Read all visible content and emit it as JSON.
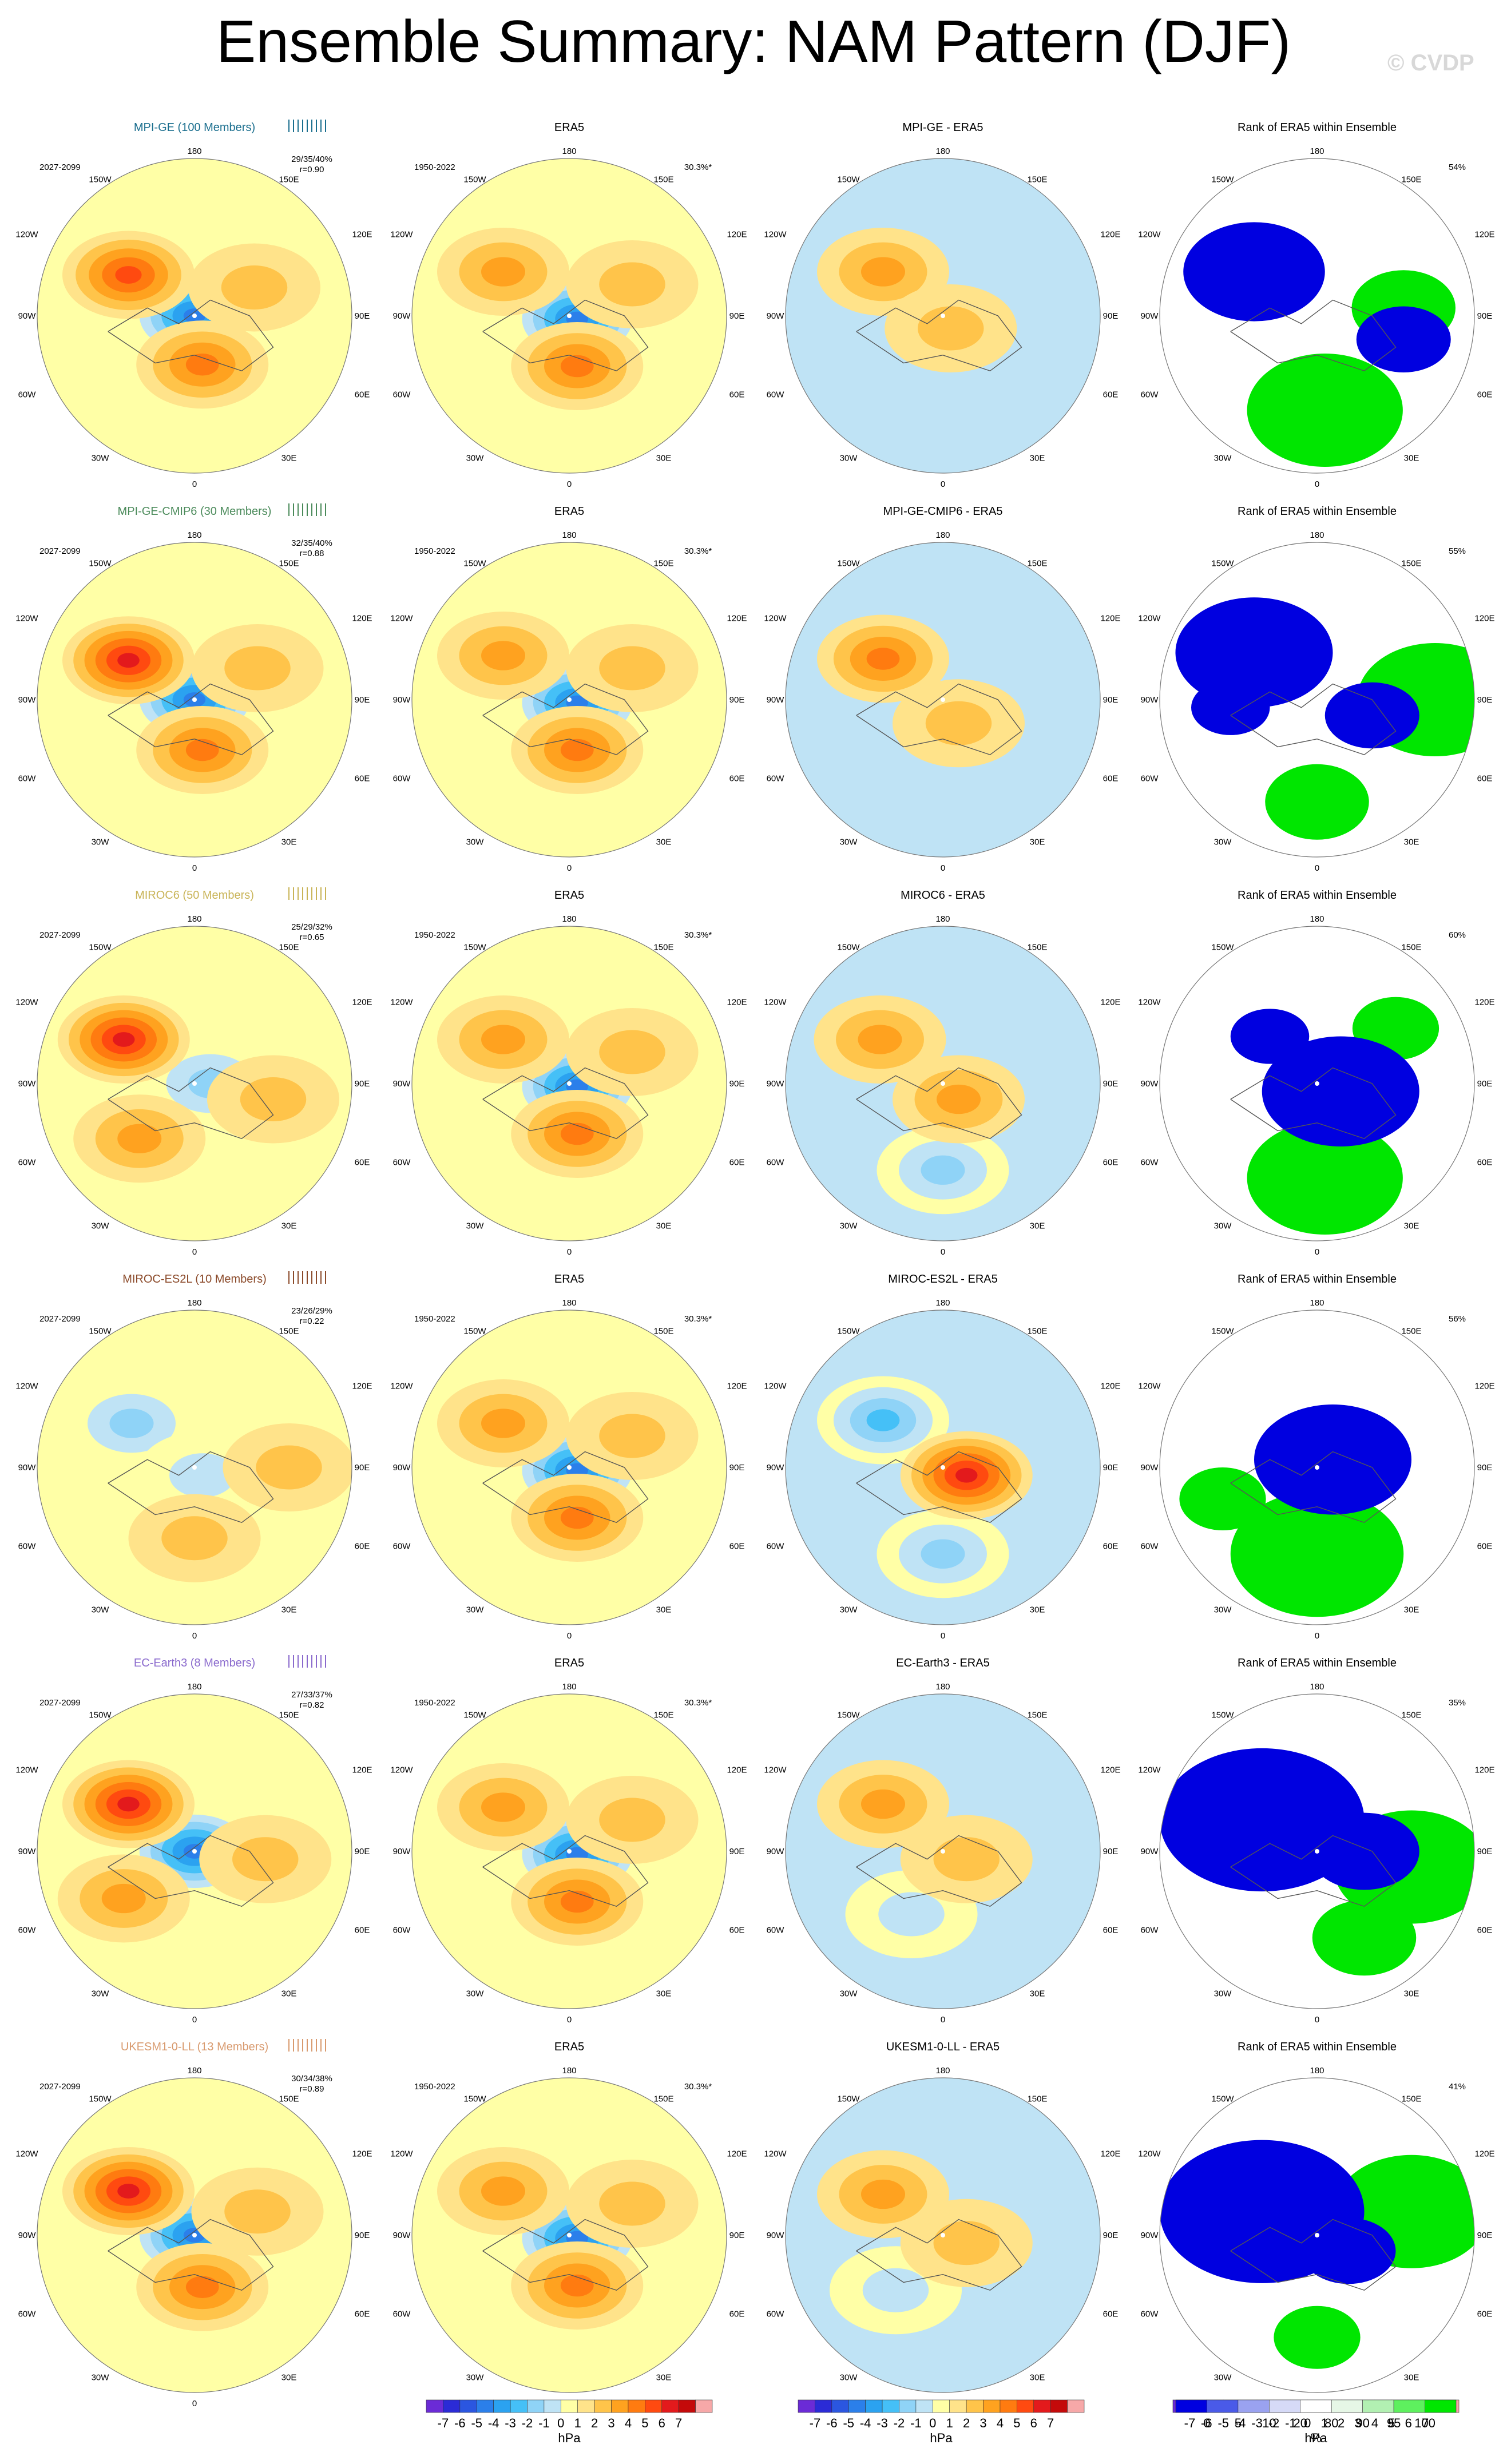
{
  "title": "Ensemble Summary: NAM Pattern (DJF)",
  "watermark": "© CVDP",
  "period_model": "2027-2099",
  "period_obs": "1950-2022",
  "obs_name": "ERA5",
  "obs_variance": "30.3%*",
  "rank_title": "Rank of ERA5 within Ensemble",
  "lon_labels": {
    "top": "180",
    "bottom": "0",
    "left_top": "150W",
    "right_top": "150E",
    "left_upper": "120W",
    "right_upper": "120E",
    "left_mid": "90W",
    "right_mid": "90E",
    "left_lower": "60W",
    "right_lower": "60E",
    "left_bottom": "30W",
    "right_bottom": "30E"
  },
  "models": [
    {
      "title": "MPI-GE (100 Members)",
      "diff_title": "MPI-GE - ERA5",
      "color": "#1a6e8e",
      "stats": "29/35/40%",
      "corr": "r=0.90",
      "rank_pct": "54%",
      "mean_pos": [
        [
          -0.42,
          -0.26,
          4.6
        ],
        [
          0.05,
          0.31,
          3.2
        ],
        [
          0.38,
          -0.18,
          1.5
        ]
      ],
      "mean_neg": [
        [
          0.0,
          0.0,
          -5.2
        ]
      ],
      "diff_pos": [
        [
          -0.38,
          -0.28,
          2.2
        ],
        [
          0.05,
          0.08,
          1.2
        ]
      ],
      "diff_neg": [],
      "rank_low": [
        [
          -0.4,
          -0.28,
          0.9
        ],
        [
          0.55,
          0.15,
          0.6
        ]
      ],
      "rank_high": [
        [
          0.05,
          0.6,
          0.9
        ],
        [
          0.55,
          -0.05,
          0.6
        ]
      ]
    },
    {
      "title": "MPI-GE-CMIP6 (30 Members)",
      "diff_title": "MPI-GE-CMIP6 - ERA5",
      "color": "#4a8a5a",
      "stats": "32/35/40%",
      "corr": "r=0.88",
      "rank_pct": "55%",
      "mean_pos": [
        [
          -0.42,
          -0.25,
          5.8
        ],
        [
          0.05,
          0.32,
          3.4
        ],
        [
          0.4,
          -0.2,
          1.6
        ]
      ],
      "mean_neg": [
        [
          0.0,
          0.0,
          -5.0
        ]
      ],
      "diff_pos": [
        [
          -0.38,
          -0.26,
          3.2
        ],
        [
          0.1,
          0.15,
          1.3
        ]
      ],
      "diff_neg": [],
      "rank_low": [
        [
          -0.4,
          -0.3,
          1.0
        ],
        [
          0.35,
          0.1,
          0.6
        ],
        [
          -0.55,
          0.05,
          0.5
        ]
      ],
      "rank_high": [
        [
          0.75,
          0.0,
          0.9
        ],
        [
          0.0,
          0.65,
          0.6
        ]
      ]
    },
    {
      "title": "MIROC6 (50 Members)",
      "diff_title": "MIROC6 - ERA5",
      "color": "#c9b458",
      "stats": "25/29/32%",
      "corr": "r=0.65",
      "rank_pct": "60%",
      "mean_pos": [
        [
          -0.45,
          -0.28,
          5.2
        ],
        [
          -0.35,
          0.35,
          2.2
        ],
        [
          0.5,
          0.1,
          1.2
        ]
      ],
      "mean_neg": [
        [
          0.1,
          0.0,
          -2.8
        ]
      ],
      "diff_pos": [
        [
          -0.4,
          -0.28,
          2.6
        ],
        [
          0.1,
          0.1,
          2.8
        ]
      ],
      "diff_neg": [
        [
          0.0,
          0.55,
          -2.4
        ]
      ],
      "rank_low": [
        [
          0.15,
          0.05,
          1.0
        ],
        [
          -0.3,
          -0.3,
          0.5
        ]
      ],
      "rank_high": [
        [
          0.05,
          0.6,
          0.9
        ],
        [
          0.5,
          -0.35,
          0.5
        ]
      ]
    },
    {
      "title": "MIROC-ES2L (10 Members)",
      "diff_title": "MIROC-ES2L - ERA5",
      "color": "#8b4a2a",
      "stats": "23/26/29%",
      "corr": "r=0.22",
      "rank_pct": "56%",
      "mean_pos": [
        [
          0.0,
          0.45,
          1.5
        ],
        [
          0.6,
          0.0,
          1.2
        ]
      ],
      "mean_neg": [
        [
          -0.4,
          -0.28,
          -2.4
        ],
        [
          0.05,
          0.05,
          -1.6
        ]
      ],
      "diff_pos": [
        [
          0.15,
          0.05,
          5.4
        ]
      ],
      "diff_neg": [
        [
          -0.38,
          -0.3,
          -3.6
        ],
        [
          0.0,
          0.55,
          -2.4
        ]
      ],
      "rank_low": [
        [
          0.1,
          -0.05,
          1.0
        ]
      ],
      "rank_high": [
        [
          0.0,
          0.55,
          1.0
        ],
        [
          -0.6,
          0.2,
          0.5
        ]
      ]
    },
    {
      "title": "EC-Earth3 (8 Members)",
      "diff_title": "EC-Earth3 - ERA5",
      "color": "#8a6acd",
      "stats": "27/33/37%",
      "corr": "r=0.82",
      "rank_pct": "35%",
      "mean_pos": [
        [
          -0.42,
          -0.3,
          5.6
        ],
        [
          -0.45,
          0.3,
          2.8
        ],
        [
          0.45,
          0.05,
          1.2
        ]
      ],
      "mean_neg": [
        [
          0.0,
          0.0,
          -5.0
        ]
      ],
      "diff_pos": [
        [
          -0.38,
          -0.3,
          2.8
        ],
        [
          0.15,
          0.05,
          1.6
        ]
      ],
      "diff_neg": [
        [
          -0.2,
          0.4,
          -1.2
        ]
      ],
      "rank_low": [
        [
          -0.35,
          -0.2,
          1.3
        ],
        [
          0.3,
          0.0,
          0.7
        ]
      ],
      "rank_high": [
        [
          0.6,
          0.1,
          0.9
        ],
        [
          0.3,
          0.55,
          0.6
        ]
      ]
    },
    {
      "title": "UKESM1-0-LL (13 Members)",
      "diff_title": "UKESM1-0-LL - ERA5",
      "color": "#d89a6e",
      "stats": "30/34/38%",
      "corr": "r=0.89",
      "rank_pct": "41%",
      "mean_pos": [
        [
          -0.42,
          -0.28,
          5.4
        ],
        [
          0.05,
          0.33,
          3.0
        ],
        [
          0.4,
          -0.15,
          1.4
        ]
      ],
      "mean_neg": [
        [
          0.0,
          0.0,
          -5.2
        ]
      ],
      "diff_pos": [
        [
          -0.38,
          -0.26,
          2.8
        ],
        [
          0.15,
          0.05,
          1.4
        ]
      ],
      "diff_neg": [
        [
          -0.3,
          0.35,
          -1.0
        ]
      ],
      "rank_low": [
        [
          -0.35,
          -0.15,
          1.3
        ],
        [
          0.2,
          0.1,
          0.6
        ]
      ],
      "rank_high": [
        [
          0.6,
          -0.15,
          0.9
        ],
        [
          0.0,
          0.65,
          0.5
        ]
      ]
    }
  ],
  "obs_field": {
    "pos": [
      [
        -0.42,
        -0.28,
        2.6
      ],
      [
        0.05,
        0.32,
        3.6
      ],
      [
        0.4,
        -0.2,
        1.4
      ]
    ],
    "neg": [
      [
        0.05,
        0.02,
        -5.8
      ]
    ]
  },
  "hpa_legend": {
    "labels": [
      "-7",
      "-6",
      "-5",
      "-4",
      "-3",
      "-2",
      "-1",
      "0",
      "1",
      "2",
      "3",
      "4",
      "5",
      "6",
      "7"
    ],
    "unit": "hPa",
    "colors": [
      "#6b2bd6",
      "#2b2bd6",
      "#2b56e0",
      "#2b7fea",
      "#2ba2f0",
      "#45c0f7",
      "#8fd3f7",
      "#bfe3f5",
      "#ffffa6",
      "#ffe38a",
      "#ffc44a",
      "#ffa21f",
      "#ff7b10",
      "#ff4a10",
      "#e31a1c",
      "#c40a0a",
      "#f7a8a8"
    ]
  },
  "rank_legend": {
    "labels": [
      "0",
      "5",
      "10",
      "20",
      "80",
      "90",
      "95",
      "100"
    ],
    "unit": "%",
    "colors": [
      "#0000e0",
      "#4a5ae8",
      "#9aa2f0",
      "#d6daf7",
      "#ffffff",
      "#e6f7e6",
      "#b2f0b2",
      "#5ef05e",
      "#00e600"
    ]
  }
}
